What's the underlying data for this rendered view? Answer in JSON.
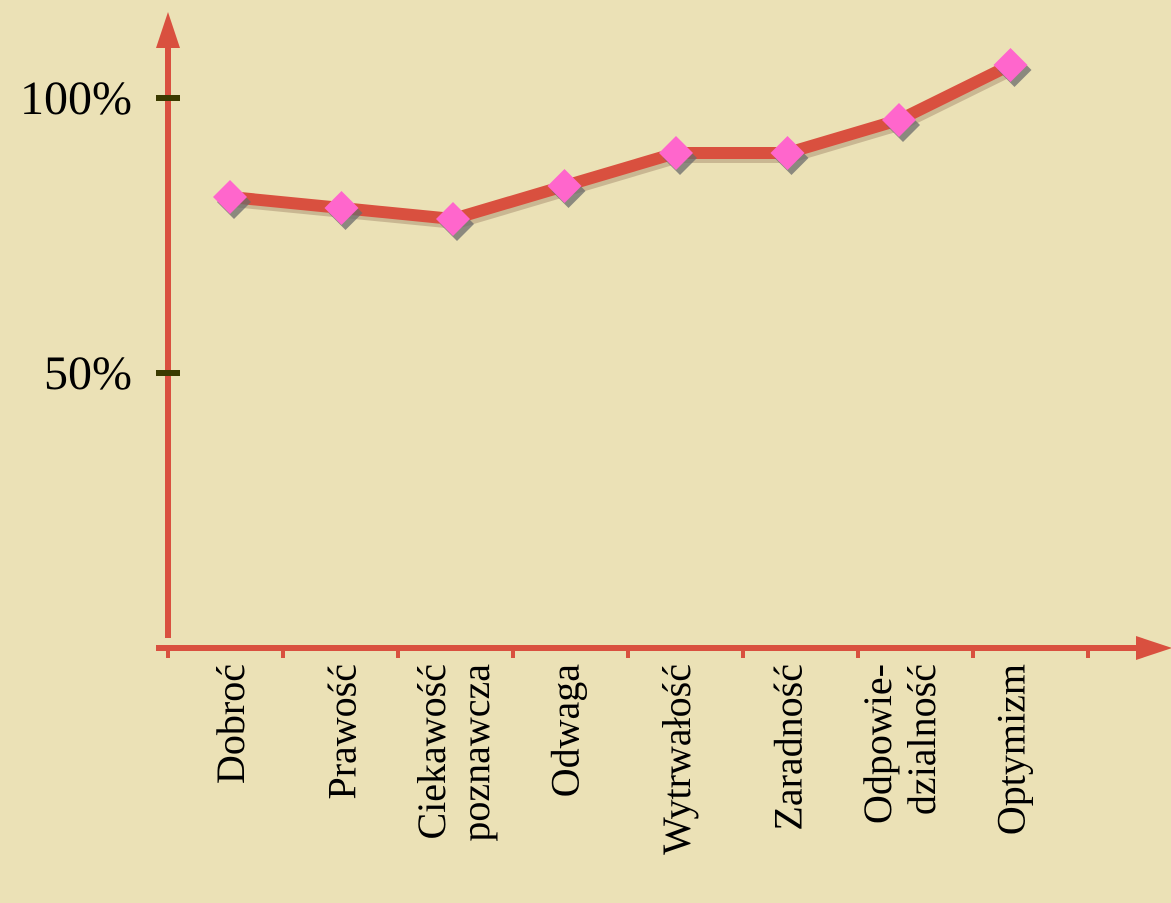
{
  "chart_data": {
    "type": "line",
    "title": "",
    "xlabel": "",
    "ylabel": "",
    "categories": [
      [
        "Dobroć"
      ],
      [
        "Prawość"
      ],
      [
        "Ciekawość",
        "poznawcza"
      ],
      [
        "Odwaga"
      ],
      [
        "Wytrwałość"
      ],
      [
        "Zaradność"
      ],
      [
        "Odpowie-",
        "dzialność"
      ],
      [
        "Optymizm"
      ]
    ],
    "series": [
      {
        "values": [
          82,
          80,
          78,
          84,
          90,
          90,
          96,
          106
        ]
      }
    ],
    "y_ticks": [
      {
        "value": 50,
        "label": "50%"
      },
      {
        "value": 100,
        "label": "100%"
      }
    ],
    "ylim": [
      0,
      110
    ],
    "grid": false,
    "colors": {
      "axis": "#d9503f",
      "line": "#d9503f",
      "marker": "#ff66cc",
      "marker_shadow": "#6b6b6b",
      "ytick": "#3a3a00",
      "background": "#ebe1b6"
    }
  }
}
